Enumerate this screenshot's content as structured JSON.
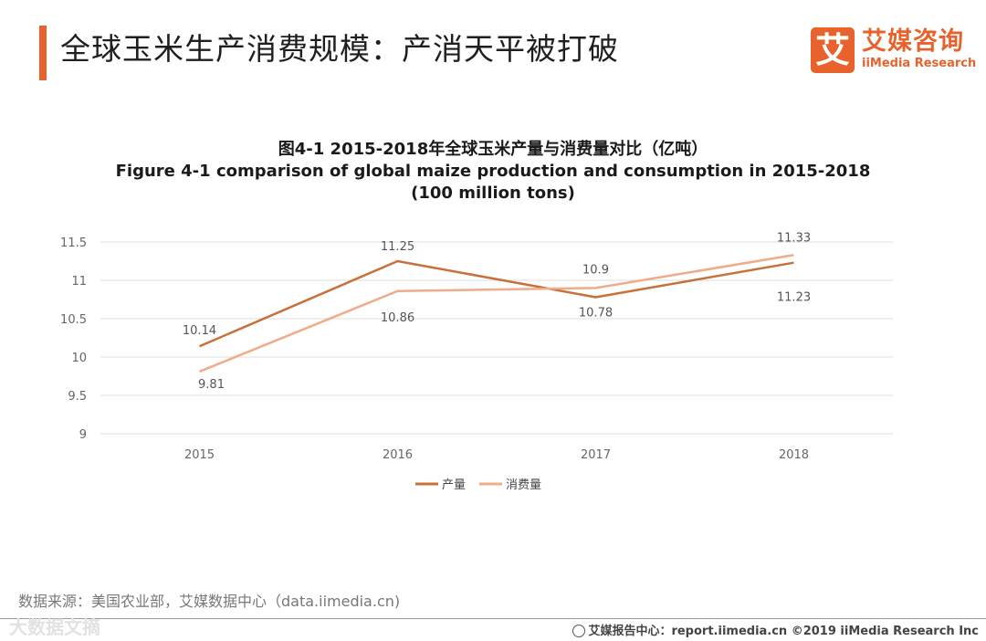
{
  "header": {
    "title": "全球玉米生产消费规模：产消天平被打破",
    "logo_mark": "艾",
    "logo_cn": "艾媒咨询",
    "logo_en": "iiMedia Research"
  },
  "chart_data": {
    "type": "line",
    "title_cn": "图4-1 2015-2018年全球玉米产量与消费量对比（亿吨）",
    "title_en": "Figure 4-1 comparison  of global maize production and consumption  in 2015-2018",
    "title_unit": "(100 million tons)",
    "categories": [
      "2015",
      "2016",
      "2017",
      "2018"
    ],
    "ylim": [
      9,
      11.5
    ],
    "yticks": [
      "9",
      "9.5",
      "10",
      "10.5",
      "11",
      "11.5"
    ],
    "grid": true,
    "legend_position": "bottom-center",
    "series": [
      {
        "name": "产量",
        "color": "#c8703a",
        "values": [
          10.14,
          11.25,
          10.78,
          11.23
        ],
        "labels": [
          "10.14",
          "11.25",
          "10.78",
          "11.23"
        ]
      },
      {
        "name": "消费量",
        "color": "#f0ab88",
        "values": [
          9.81,
          10.86,
          10.9,
          11.33
        ],
        "labels": [
          "9.81",
          "10.86",
          "10.9",
          "11.33"
        ]
      }
    ]
  },
  "footer": {
    "source": "数据来源：美国农业部，艾媒数据中心（data.iimedia.cn)",
    "watermark": "大数据文摘",
    "report": "艾媒报告中心：report.iimedia.cn  ©2019  iiMedia Research  Inc"
  }
}
